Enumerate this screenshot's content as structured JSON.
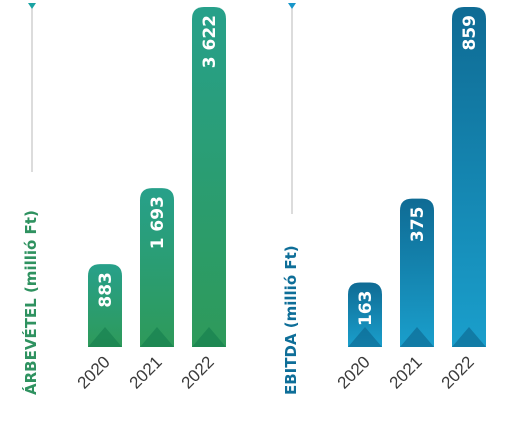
{
  "chart_data": [
    {
      "type": "bar",
      "ylabel": "ÁRBEVÉTEL (millió Ft)",
      "categories": [
        "2020",
        "2021",
        "2022"
      ],
      "values": [
        883,
        1693,
        3622
      ],
      "value_labels": [
        "883",
        "1 693",
        "3 622"
      ],
      "ylim": [
        0,
        3622
      ],
      "colors": {
        "title": "#2f9260",
        "bar_top": "#27a08a",
        "bar_bottom": "#2e9a5a",
        "facet": "#137a4c",
        "marker": "#1aa3a3"
      }
    },
    {
      "type": "bar",
      "ylabel": "EBITDA (millió Ft)",
      "categories": [
        "2020",
        "2021",
        "2022"
      ],
      "values": [
        163,
        375,
        859
      ],
      "value_labels": [
        "163",
        "375",
        "859"
      ],
      "ylim": [
        0,
        859
      ],
      "colors": {
        "title": "#0e6e98",
        "bar_top": "#0f6b94",
        "bar_bottom": "#1a9fcc",
        "facet": "#0b5f86",
        "marker": "#1896c9"
      }
    }
  ]
}
